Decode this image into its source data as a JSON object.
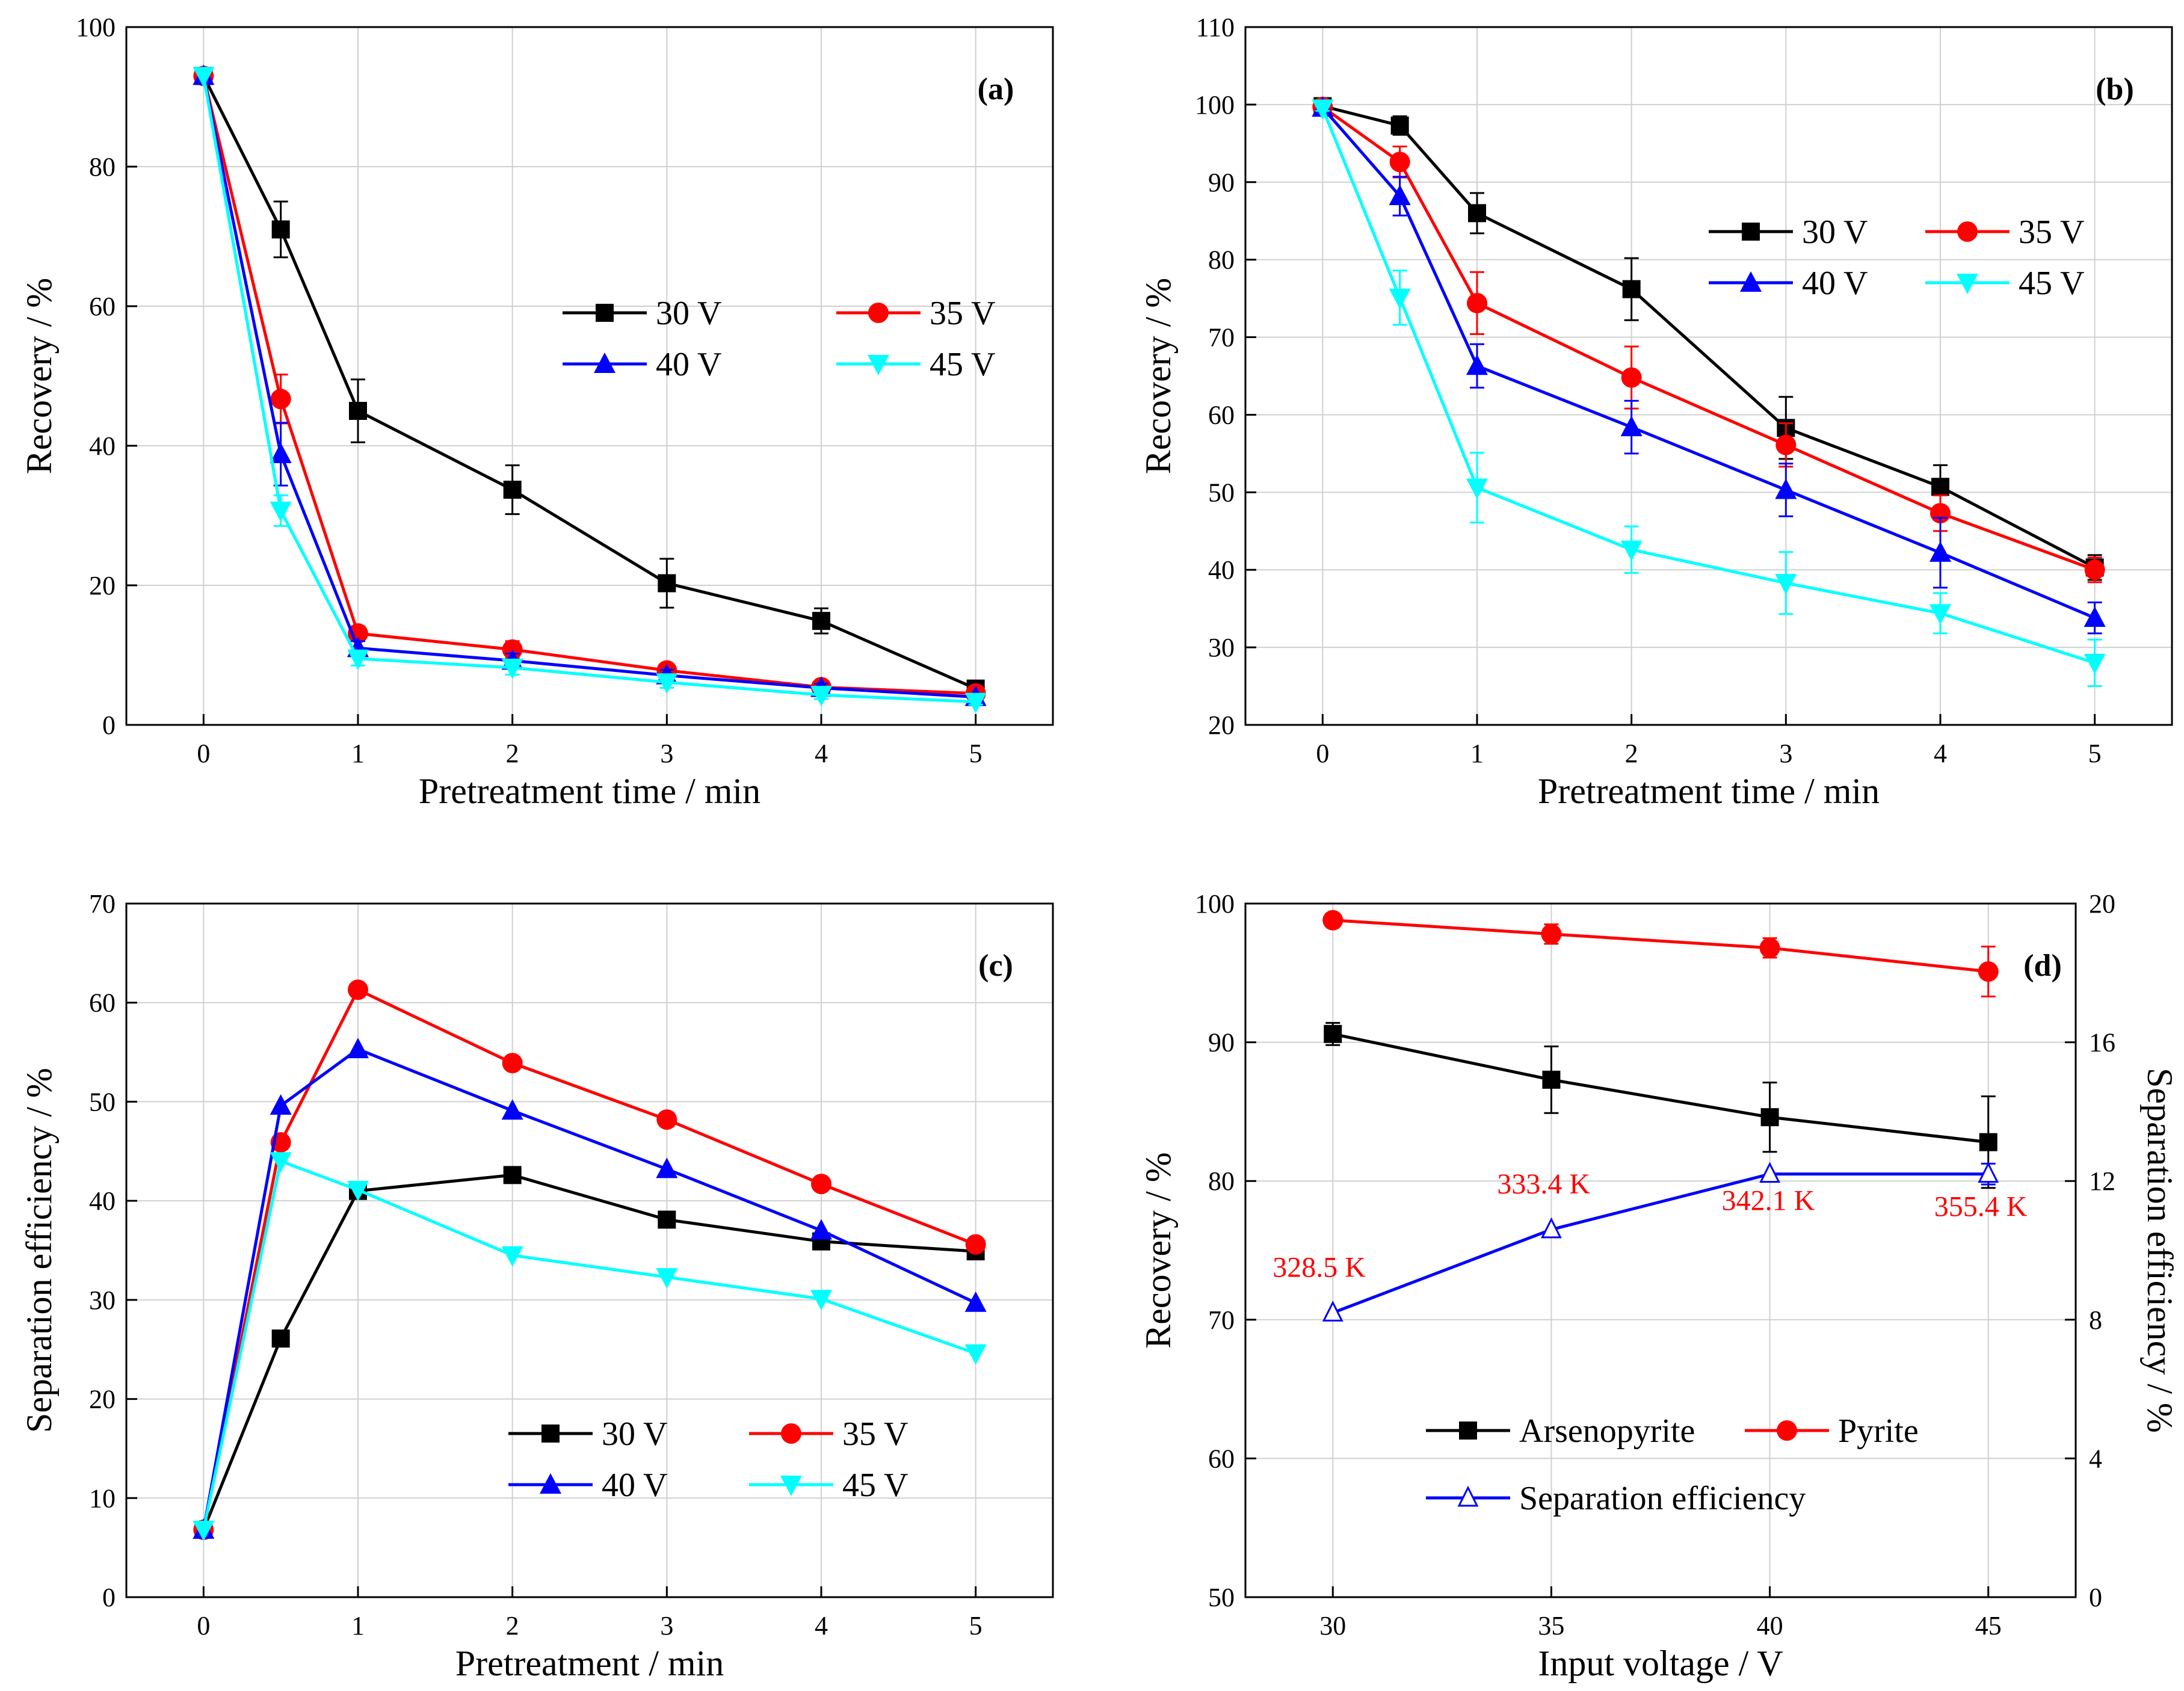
{
  "chart_data": [
    {
      "type": "line",
      "panel": "(a)",
      "xlabel": "Pretreatment time / min",
      "ylabel": "Recovery / %",
      "x": [
        0,
        0.5,
        1,
        2,
        3,
        4,
        5
      ],
      "xlim": [
        -0.5,
        5.5
      ],
      "ylim": [
        0,
        100
      ],
      "xticks": [
        0,
        1,
        2,
        3,
        4,
        5
      ],
      "yticks": [
        0,
        20,
        40,
        60,
        80,
        100
      ],
      "grid": true,
      "legend_position": "center-right",
      "series": [
        {
          "name": "30 V",
          "color": "#000000",
          "marker": "square",
          "values": [
            93,
            71,
            45,
            33.7,
            20.3,
            14.9,
            5.2
          ],
          "errors": [
            0,
            4,
            4.5,
            3.5,
            3.5,
            1.8,
            0.5
          ]
        },
        {
          "name": "35 V",
          "color": "#ff0000",
          "marker": "circle",
          "values": [
            93,
            46.7,
            13.1,
            10.8,
            7.8,
            5.4,
            4.5
          ],
          "errors": [
            0,
            3.5,
            1,
            1.2,
            0.8,
            0.6,
            0.5
          ]
        },
        {
          "name": "40 V",
          "color": "#0000ff",
          "marker": "triangle-up",
          "values": [
            93,
            38.8,
            11,
            9.2,
            7.1,
            5.3,
            4
          ],
          "errors": [
            0,
            4.5,
            1,
            1,
            0.8,
            0.6,
            0.4
          ]
        },
        {
          "name": "45 V",
          "color": "#00ffff",
          "marker": "triangle-down",
          "values": [
            93,
            30.7,
            9.5,
            8.2,
            6.1,
            4.3,
            3.3
          ],
          "errors": [
            0,
            2.2,
            1,
            1,
            0.8,
            0.6,
            0.4
          ]
        }
      ]
    },
    {
      "type": "line",
      "panel": "(b)",
      "xlabel": "Pretreatment time / min",
      "ylabel": "Recovery / %",
      "x": [
        0,
        0.5,
        1,
        2,
        3,
        4,
        5
      ],
      "xlim": [
        -0.5,
        5.5
      ],
      "ylim": [
        20,
        110
      ],
      "xticks": [
        0,
        1,
        2,
        3,
        4,
        5
      ],
      "yticks": [
        20,
        30,
        40,
        50,
        60,
        70,
        80,
        90,
        100,
        110
      ],
      "grid": true,
      "legend_position": "top-right",
      "series": [
        {
          "name": "30 V",
          "color": "#000000",
          "marker": "square",
          "values": [
            99.8,
            97.3,
            86,
            76.2,
            58.3,
            50.7,
            40.3
          ],
          "errors": [
            0.3,
            1.2,
            2.6,
            4,
            4,
            2.8,
            1.6
          ]
        },
        {
          "name": "35 V",
          "color": "#ff0000",
          "marker": "circle",
          "values": [
            99.7,
            92.6,
            74.4,
            64.8,
            56.1,
            47.3,
            40
          ],
          "errors": [
            0.3,
            2,
            4,
            4,
            2.8,
            2.3,
            1.6
          ]
        },
        {
          "name": "40 V",
          "color": "#0000ff",
          "marker": "triangle-up",
          "values": [
            99.6,
            88.2,
            66.3,
            58.4,
            50.3,
            42.2,
            33.8
          ],
          "errors": [
            0.3,
            2.5,
            2.8,
            3.4,
            3.4,
            4.5,
            2
          ]
        },
        {
          "name": "45 V",
          "color": "#00ffff",
          "marker": "triangle-down",
          "values": [
            99.5,
            75.1,
            50.6,
            42.6,
            38.3,
            34.4,
            28
          ],
          "errors": [
            0.3,
            3.5,
            4.5,
            3,
            4,
            2.6,
            3
          ]
        }
      ]
    },
    {
      "type": "line",
      "panel": "(c)",
      "xlabel": "Pretreatment / min",
      "ylabel": "Separation efficiency / %",
      "x": [
        0,
        0.5,
        1,
        2,
        3,
        4,
        5
      ],
      "xlim": [
        -0.5,
        5.5
      ],
      "ylim": [
        0,
        70
      ],
      "xticks": [
        0,
        1,
        2,
        3,
        4,
        5
      ],
      "yticks": [
        0,
        10,
        20,
        30,
        40,
        50,
        60,
        70
      ],
      "grid": true,
      "legend_position": "bottom-right",
      "series": [
        {
          "name": "30 V",
          "color": "#000000",
          "marker": "square",
          "values": [
            6.8,
            26.1,
            41,
            42.6,
            38.1,
            35.9,
            34.9
          ]
        },
        {
          "name": "35 V",
          "color": "#ff0000",
          "marker": "circle",
          "values": [
            6.8,
            45.9,
            61.3,
            53.9,
            48.2,
            41.7,
            35.6
          ]
        },
        {
          "name": "40 V",
          "color": "#0000ff",
          "marker": "triangle-up",
          "values": [
            6.8,
            49.6,
            55.3,
            49.1,
            43.2,
            37,
            29.7
          ]
        },
        {
          "name": "45 V",
          "color": "#00ffff",
          "marker": "triangle-down",
          "values": [
            6.8,
            44,
            41.1,
            34.5,
            32.3,
            30.1,
            24.6
          ]
        }
      ]
    },
    {
      "type": "line",
      "panel": "(d)",
      "xlabel": "Input voltage / V",
      "ylabel": "Recovery / %",
      "y2label": "Separation efficiency / %",
      "x": [
        30,
        35,
        40,
        45
      ],
      "xlim": [
        28,
        47
      ],
      "ylim": [
        50,
        100
      ],
      "y2lim": [
        0,
        20
      ],
      "xticks": [
        30,
        35,
        40,
        45
      ],
      "yticks": [
        50,
        60,
        70,
        80,
        90,
        100
      ],
      "y2ticks": [
        0,
        4,
        8,
        12,
        16,
        20
      ],
      "grid": true,
      "legend_position": "bottom-center",
      "series": [
        {
          "name": "Arsenopyrite",
          "color": "#000000",
          "marker": "square",
          "axis": "left",
          "values": [
            90.6,
            87.3,
            84.6,
            82.8
          ],
          "errors": [
            0.8,
            2.4,
            2.5,
            3.3
          ]
        },
        {
          "name": "Pyrite",
          "color": "#ff0000",
          "marker": "circle",
          "axis": "left",
          "values": [
            98.8,
            97.8,
            96.8,
            95.1
          ],
          "errors": [
            0.3,
            0.7,
            0.7,
            1.8
          ]
        },
        {
          "name": "Separation efficiency",
          "color": "#0000ff",
          "marker": "open-triangle-up",
          "axis": "right",
          "values": [
            8.2,
            10.6,
            12.2,
            12.2
          ],
          "errors": [
            0,
            0,
            0,
            0.3
          ]
        }
      ],
      "annotations": [
        "328.5 K",
        "333.4 K",
        "342.1 K",
        "355.4 K"
      ]
    }
  ]
}
